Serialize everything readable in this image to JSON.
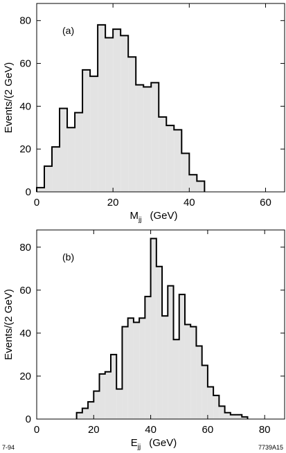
{
  "footer": {
    "left": "7-94",
    "right": "7739A15"
  },
  "chart_data": [
    {
      "type": "bar",
      "panel_label": "(a)",
      "xlabel_main": "M",
      "xlabel_sub": "jj",
      "xlabel_unit": "(GeV)",
      "ylabel": "Events/(2 GeV)",
      "xlim": [
        0,
        65
      ],
      "ylim": [
        0,
        88
      ],
      "xticks": [
        0,
        20,
        40,
        60
      ],
      "yticks": [
        0,
        20,
        40,
        60,
        80
      ],
      "bin_width": 2,
      "x": [
        0,
        2,
        4,
        6,
        8,
        10,
        12,
        14,
        16,
        18,
        20,
        22,
        24,
        26,
        28,
        30,
        32,
        34,
        36,
        38,
        40,
        42
      ],
      "values": [
        2,
        12,
        21,
        39,
        30,
        37,
        57,
        54,
        78,
        72,
        76,
        73,
        63,
        50,
        49,
        51,
        35,
        31,
        29,
        18,
        8,
        5
      ],
      "fill": "#e3e3e3",
      "line": "#000000"
    },
    {
      "type": "bar",
      "panel_label": "(b)",
      "xlabel_main": "E",
      "xlabel_sub": "jj",
      "xlabel_unit": "(GeV)",
      "ylabel": "Events/(2 GeV)",
      "xlim": [
        0,
        87
      ],
      "ylim": [
        0,
        88
      ],
      "xticks": [
        0,
        20,
        40,
        60,
        80
      ],
      "yticks": [
        0,
        20,
        40,
        60,
        80
      ],
      "bin_width": 2,
      "x": [
        14,
        16,
        18,
        20,
        22,
        24,
        26,
        28,
        30,
        32,
        34,
        36,
        38,
        40,
        42,
        44,
        46,
        48,
        50,
        52,
        54,
        56,
        58,
        60,
        62,
        64,
        66,
        68,
        70,
        72
      ],
      "values": [
        3,
        5,
        8,
        13,
        21,
        22,
        30,
        14,
        43,
        47,
        45,
        47,
        57,
        84,
        71,
        48,
        62,
        37,
        58,
        44,
        43,
        34,
        25,
        15,
        11,
        6,
        3,
        2,
        2,
        1
      ],
      "fill": "#e3e3e3",
      "line": "#000000"
    }
  ]
}
